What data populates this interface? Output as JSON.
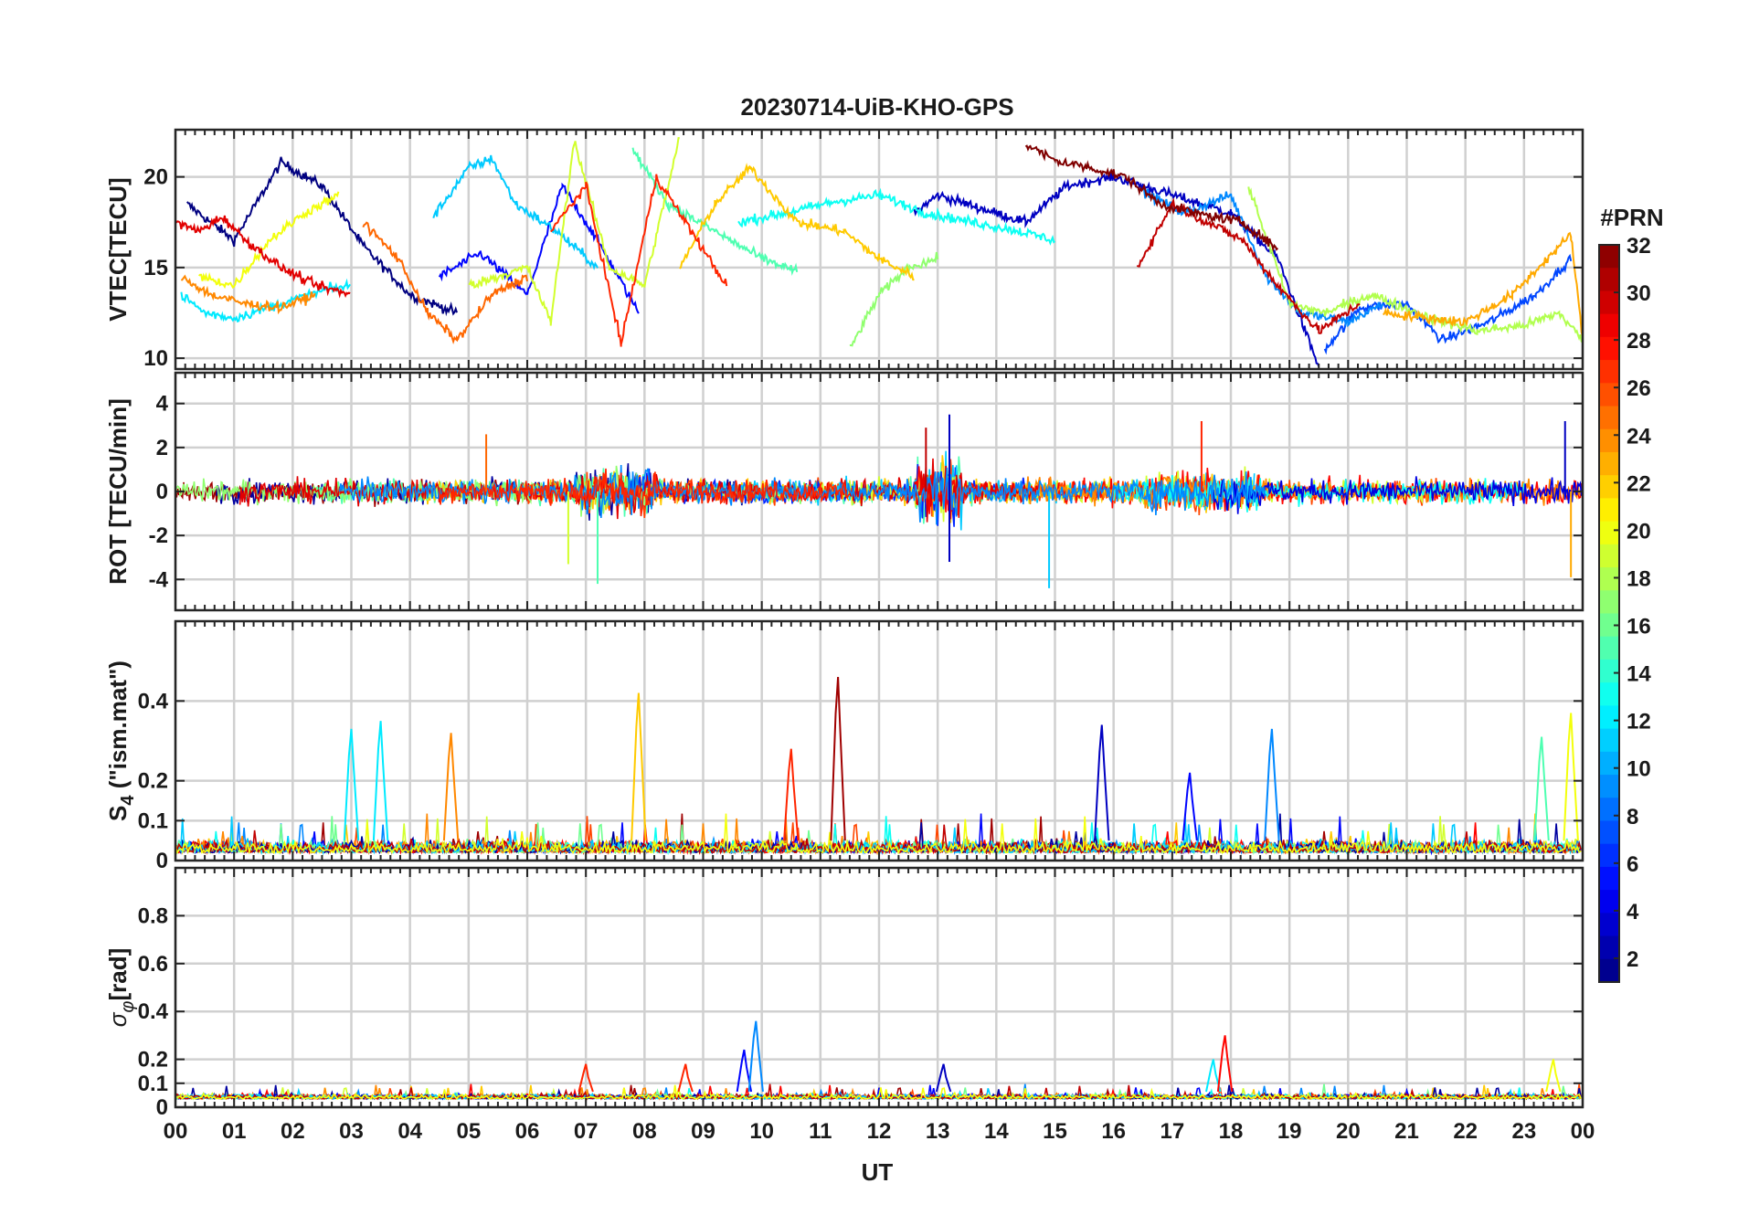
{
  "chart_data": {
    "type": "line",
    "title": "20230714-UiB-KHO-GPS",
    "xlabel": "UT",
    "x_tick_labels": [
      "00",
      "01",
      "02",
      "03",
      "04",
      "05",
      "06",
      "07",
      "08",
      "09",
      "10",
      "11",
      "12",
      "13",
      "14",
      "15",
      "16",
      "17",
      "18",
      "19",
      "20",
      "21",
      "22",
      "23",
      "00"
    ],
    "xlim": [
      0,
      24
    ],
    "colorbar": {
      "label": "#PRN",
      "range": [
        1,
        32
      ],
      "tick_values": [
        2,
        4,
        6,
        8,
        10,
        12,
        14,
        16,
        18,
        20,
        22,
        24,
        26,
        28,
        30,
        32
      ],
      "tick_labels": [
        "2",
        "4",
        "6",
        "8",
        "10",
        "12",
        "14",
        "16",
        "18",
        "20",
        "22",
        "24",
        "26",
        "28",
        "30",
        "32"
      ],
      "colormap": "jet"
    },
    "panels": [
      {
        "name": "vtec",
        "ylabel": "VTEC[TECU]",
        "ylim": [
          9.4,
          22.6
        ],
        "y_tick_values": [
          10,
          15,
          20
        ],
        "y_tick_labels": [
          "10",
          "15",
          "20"
        ],
        "series_note": "approx. envelope per PRN",
        "series": [
          {
            "prn": 1,
            "x": [
              0.2,
              1.0,
              1.8,
              2.5,
              3.2,
              4.0,
              4.8
            ],
            "y": [
              18.5,
              16.5,
              20.8,
              19.5,
              16.2,
              13.5,
              12.5
            ]
          },
          {
            "prn": 3,
            "x": [
              12.6,
              13.0,
              13.5,
              14.5,
              15.2,
              16.0,
              17.0,
              18.0,
              18.8,
              19.5
            ],
            "y": [
              18.0,
              19.0,
              18.5,
              17.5,
              19.5,
              20.0,
              19.0,
              18.0,
              15.5,
              9.5
            ]
          },
          {
            "prn": 5,
            "x": [
              4.5,
              5.2,
              6.0,
              6.6,
              7.2,
              7.9
            ],
            "y": [
              14.5,
              15.8,
              13.5,
              19.5,
              16.5,
              12.5
            ]
          },
          {
            "prn": 7,
            "x": [
              19.6,
              20.2,
              21.0,
              21.6,
              22.4,
              23.2,
              23.8
            ],
            "y": [
              10.5,
              12.8,
              13.0,
              11.0,
              12.0,
              13.5,
              15.5
            ]
          },
          {
            "prn": 9,
            "x": [
              16.5,
              17.2,
              18.0,
              18.6,
              19.2,
              20.0,
              20.6
            ],
            "y": [
              19.2,
              18.0,
              19.0,
              14.5,
              12.5,
              12.0,
              13.0
            ]
          },
          {
            "prn": 11,
            "x": [
              4.4,
              5.0,
              5.4,
              5.8,
              6.5,
              7.2
            ],
            "y": [
              17.8,
              20.5,
              21.0,
              18.5,
              17.0,
              15.0
            ]
          },
          {
            "prn": 12,
            "x": [
              0.1,
              0.5,
              1.0,
              1.8,
              2.6,
              3.0
            ],
            "y": [
              13.5,
              12.5,
              12.2,
              13.0,
              13.8,
              14.0
            ]
          },
          {
            "prn": 13,
            "x": [
              9.6,
              10.4,
              11.2,
              12.0,
              12.8,
              13.6,
              14.4,
              15.0
            ],
            "y": [
              17.5,
              18.0,
              18.6,
              19.0,
              18.0,
              17.5,
              17.0,
              16.5
            ]
          },
          {
            "prn": 15,
            "x": [
              7.8,
              8.4,
              9.2,
              10.0,
              10.6
            ],
            "y": [
              21.5,
              18.5,
              17.0,
              15.5,
              14.8
            ]
          },
          {
            "prn": 17,
            "x": [
              11.5,
              12.0,
              12.5,
              13.0
            ],
            "y": [
              10.5,
              13.5,
              15.0,
              15.5
            ]
          },
          {
            "prn": 18,
            "x": [
              18.3,
              19.0,
              19.6,
              20.4,
              21.4,
              22.2,
              23.0,
              23.6,
              24.0
            ],
            "y": [
              19.5,
              13.0,
              12.5,
              13.5,
              12.2,
              11.5,
              11.8,
              12.5,
              11.0
            ]
          },
          {
            "prn": 19,
            "x": [
              5.0,
              6.0,
              6.4,
              6.8,
              7.4,
              8.0,
              8.6
            ],
            "y": [
              14.0,
              15.0,
              12.0,
              22.0,
              15.0,
              14.0,
              22.2
            ]
          },
          {
            "prn": 20,
            "x": [
              0.4,
              1.0,
              1.6,
              2.2,
              2.8
            ],
            "y": [
              14.5,
              14.0,
              16.5,
              18.0,
              19.0
            ]
          },
          {
            "prn": 22,
            "x": [
              8.6,
              9.2,
              9.8,
              10.6,
              11.4,
              12.0,
              12.6
            ],
            "y": [
              15.0,
              18.5,
              20.5,
              17.5,
              17.0,
              15.5,
              14.5
            ]
          },
          {
            "prn": 23,
            "x": [
              20.6,
              21.4,
              22.0,
              22.8,
              23.4,
              23.8,
              24.0
            ],
            "y": [
              12.5,
              12.2,
              12.0,
              13.5,
              15.5,
              16.8,
              11.0
            ]
          },
          {
            "prn": 24,
            "x": [
              0.1,
              0.6,
              1.2,
              1.8,
              2.4
            ],
            "y": [
              14.5,
              13.5,
              13.0,
              12.8,
              13.5
            ]
          },
          {
            "prn": 25,
            "x": [
              3.2,
              3.8,
              4.3,
              4.8,
              5.4,
              6.0
            ],
            "y": [
              17.5,
              15.5,
              12.5,
              11.0,
              13.5,
              14.5
            ]
          },
          {
            "prn": 27,
            "x": [
              6.4,
              7.0,
              7.6,
              8.2,
              8.8,
              9.4
            ],
            "y": [
              17.0,
              19.5,
              10.8,
              20.0,
              17.0,
              14.0
            ]
          },
          {
            "prn": 29,
            "x": [
              0.0,
              0.4,
              0.8,
              1.2,
              1.8,
              2.4,
              3.0
            ],
            "y": [
              17.5,
              17.0,
              17.8,
              16.5,
              15.0,
              14.0,
              13.5
            ]
          },
          {
            "prn": 30,
            "x": [
              16.4,
              17.0,
              17.6,
              18.2,
              18.8,
              19.5,
              20.2
            ],
            "y": [
              15.0,
              18.5,
              17.5,
              16.5,
              14.0,
              11.5,
              13.0
            ]
          },
          {
            "prn": 32,
            "x": [
              14.5,
              15.0,
              15.6,
              16.2,
              16.8,
              17.4,
              18.2,
              18.8
            ],
            "y": [
              21.8,
              20.9,
              20.5,
              20.0,
              18.5,
              18.0,
              17.5,
              16.0
            ]
          }
        ]
      },
      {
        "name": "rot",
        "ylabel": "ROT [TECU/min]",
        "ylim": [
          -5.4,
          5.4
        ],
        "y_tick_values": [
          -4,
          -2,
          0,
          2,
          4
        ],
        "y_tick_labels": [
          "-4",
          "-2",
          "0",
          "2",
          "4"
        ],
        "series_note": "noise about 0 TECU/min; listed values are the visible spike extremes",
        "spikes": [
          {
            "x": 5.3,
            "y": 2.6,
            "prn": 25
          },
          {
            "x": 6.7,
            "y": -3.3,
            "prn": 19
          },
          {
            "x": 7.2,
            "y": -4.2,
            "prn": 15
          },
          {
            "x": 12.8,
            "y": 2.9,
            "prn": 30
          },
          {
            "x": 13.2,
            "y": 3.5,
            "prn": 3
          },
          {
            "x": 13.2,
            "y": -3.2,
            "prn": 3
          },
          {
            "x": 14.9,
            "y": -4.4,
            "prn": 11
          },
          {
            "x": 17.5,
            "y": 3.2,
            "prn": 27
          },
          {
            "x": 23.7,
            "y": 3.2,
            "prn": 3
          },
          {
            "x": 23.8,
            "y": -3.9,
            "prn": 23
          }
        ]
      },
      {
        "name": "s4",
        "ylabel": "S4 (\"ism.mat\")",
        "ylabel_main": "S",
        "ylabel_sub": "4",
        "ylabel_rest": " (\"ism.mat\")",
        "ylim": [
          0,
          0.6
        ],
        "y_tick_values": [
          0,
          0.1,
          0.2,
          0.4
        ],
        "y_tick_labels": [
          "0",
          "0.1",
          "0.2",
          "0.4"
        ],
        "series_note": "baseline about 0.02; listed values are the visible peaks",
        "peaks": [
          {
            "x": 3.0,
            "y": 0.33,
            "prn": 12
          },
          {
            "x": 3.5,
            "y": 0.35,
            "prn": 12
          },
          {
            "x": 4.7,
            "y": 0.32,
            "prn": 24
          },
          {
            "x": 7.9,
            "y": 0.42,
            "prn": 22
          },
          {
            "x": 10.5,
            "y": 0.28,
            "prn": 27
          },
          {
            "x": 11.3,
            "y": 0.46,
            "prn": 31
          },
          {
            "x": 15.8,
            "y": 0.34,
            "prn": 3
          },
          {
            "x": 17.3,
            "y": 0.22,
            "prn": 5
          },
          {
            "x": 18.7,
            "y": 0.33,
            "prn": 9
          },
          {
            "x": 23.3,
            "y": 0.31,
            "prn": 15
          },
          {
            "x": 23.8,
            "y": 0.37,
            "prn": 20
          }
        ]
      },
      {
        "name": "sigma_phi",
        "ylabel": "σφ[rad]",
        "ylabel_main": "σ",
        "ylabel_sub": "φ",
        "ylabel_rest": "[rad]",
        "ylim": [
          0,
          1.0
        ],
        "y_tick_values": [
          0,
          0.1,
          0.2,
          0.4,
          0.6,
          0.8
        ],
        "y_tick_labels": [
          "0",
          "0.1",
          "0.2",
          "0.4",
          "0.6",
          "0.8"
        ],
        "series_note": "baseline about 0.04; listed values are the visible peaks",
        "peaks": [
          {
            "x": 7.0,
            "y": 0.18,
            "prn": 27
          },
          {
            "x": 8.7,
            "y": 0.18,
            "prn": 27
          },
          {
            "x": 9.7,
            "y": 0.24,
            "prn": 5
          },
          {
            "x": 9.9,
            "y": 0.36,
            "prn": 9
          },
          {
            "x": 13.1,
            "y": 0.18,
            "prn": 3
          },
          {
            "x": 17.7,
            "y": 0.2,
            "prn": 12
          },
          {
            "x": 17.9,
            "y": 0.3,
            "prn": 28
          },
          {
            "x": 23.5,
            "y": 0.2,
            "prn": 20
          }
        ]
      }
    ]
  }
}
